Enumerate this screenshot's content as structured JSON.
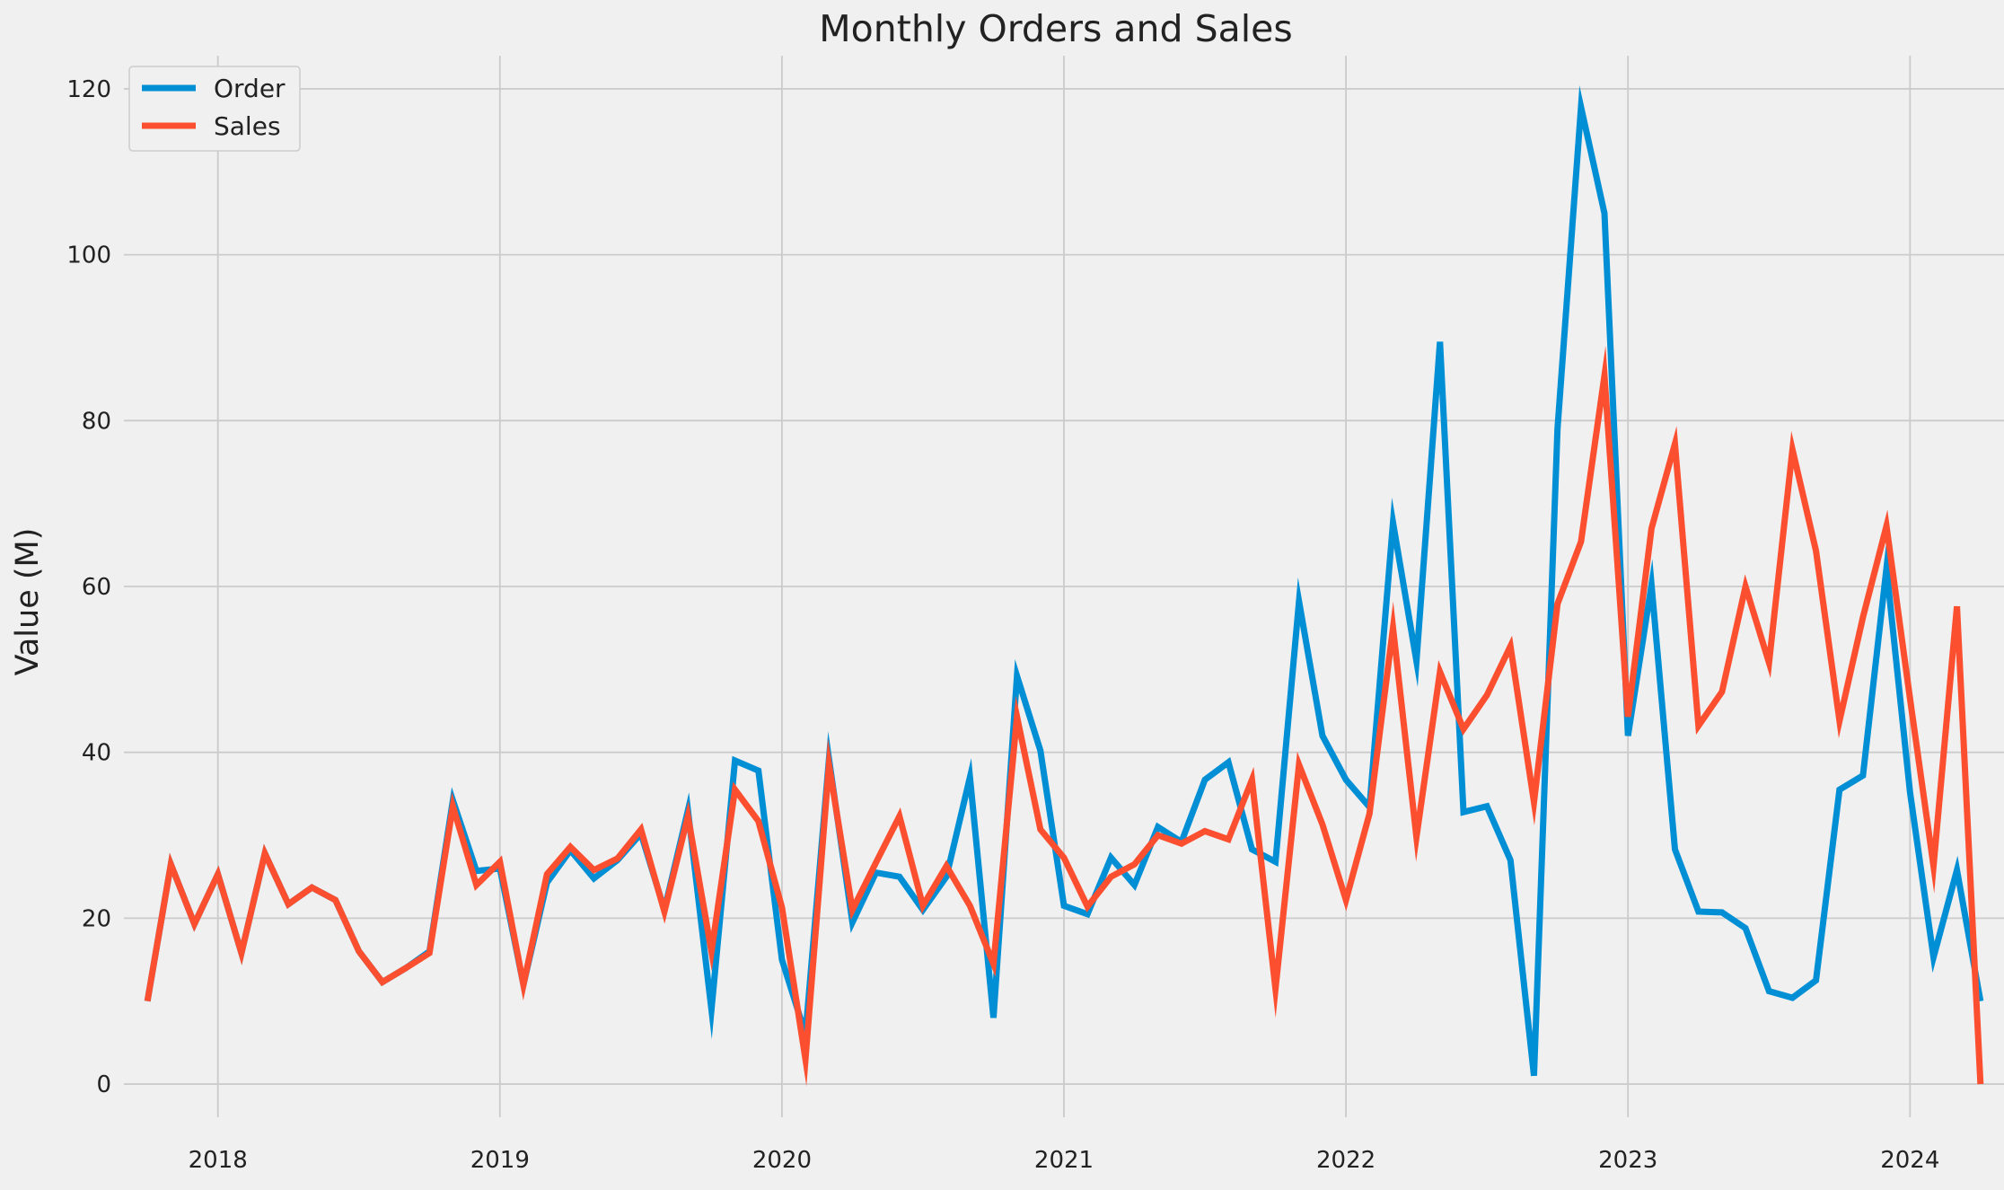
{
  "chart_data": {
    "type": "line",
    "title": "Monthly Orders and Sales",
    "xlabel": "",
    "ylabel": "Value (M)",
    "x_ticks": [
      "2018",
      "2019",
      "2020",
      "2021",
      "2022",
      "2023",
      "2024"
    ],
    "y_ticks": [
      "0",
      "20",
      "40",
      "60",
      "80",
      "100",
      "120"
    ],
    "xlim": [
      "2017-09",
      "2024-05"
    ],
    "ylim": [
      -4,
      124
    ],
    "grid": true,
    "legend_position": "top-left",
    "x": [
      "2017-10",
      "2017-11",
      "2017-12",
      "2018-01",
      "2018-02",
      "2018-03",
      "2018-04",
      "2018-05",
      "2018-06",
      "2018-07",
      "2018-08",
      "2018-09",
      "2018-10",
      "2018-11",
      "2018-12",
      "2019-01",
      "2019-02",
      "2019-03",
      "2019-04",
      "2019-05",
      "2019-06",
      "2019-07",
      "2019-08",
      "2019-09",
      "2019-10",
      "2019-11",
      "2019-12",
      "2020-01",
      "2020-02",
      "2020-03",
      "2020-04",
      "2020-05",
      "2020-06",
      "2020-07",
      "2020-08",
      "2020-09",
      "2020-10",
      "2020-11",
      "2020-12",
      "2021-01",
      "2021-02",
      "2021-03",
      "2021-04",
      "2021-05",
      "2021-06",
      "2021-07",
      "2021-08",
      "2021-09",
      "2021-10",
      "2021-11",
      "2021-12",
      "2022-01",
      "2022-02",
      "2022-03",
      "2022-04",
      "2022-05",
      "2022-06",
      "2022-07",
      "2022-08",
      "2022-09",
      "2022-10",
      "2022-11",
      "2022-12",
      "2023-01",
      "2023-02",
      "2023-03",
      "2023-04",
      "2023-05",
      "2023-06",
      "2023-07",
      "2023-08",
      "2023-09",
      "2023-10",
      "2023-11",
      "2023-12",
      "2024-01",
      "2024-02",
      "2024-03",
      "2024-04"
    ],
    "series": [
      {
        "name": "Order",
        "color": "#008fd5",
        "values": [
          10,
          26.5,
          19.3,
          25.3,
          15.8,
          27.8,
          21.7,
          23.7,
          22.2,
          16,
          12.3,
          14,
          16,
          34.2,
          25.7,
          26,
          12,
          24.3,
          28.2,
          24.8,
          27,
          30.2,
          21,
          33,
          9,
          39,
          37.8,
          15,
          6,
          39.2,
          19.5,
          25.5,
          25,
          21,
          25,
          37,
          8,
          49.2,
          40.2,
          21.5,
          20.5,
          27.3,
          24,
          31,
          29.2,
          36.7,
          38.8,
          28.3,
          26.8,
          58.2,
          42,
          36.7,
          33.4,
          67.7,
          51,
          89.5,
          32.8,
          33.5,
          27,
          1,
          79,
          117.8,
          105,
          42,
          60.2,
          28.3,
          20.8,
          20.7,
          18.8,
          11.2,
          10.4,
          12.5,
          35.5,
          37.2,
          62.2,
          35.2,
          15.3,
          25.8,
          10
        ]
      },
      {
        "name": "Sales",
        "color": "#fc4f30",
        "values": [
          10,
          26.5,
          19.3,
          25.3,
          15.8,
          27.8,
          21.7,
          23.7,
          22.2,
          16,
          12.3,
          14,
          15.8,
          33.5,
          24,
          26.8,
          12,
          25.3,
          28.6,
          25.8,
          27.2,
          30.7,
          20.8,
          32.3,
          16,
          35.5,
          31.7,
          21.3,
          3,
          38.5,
          21,
          26.7,
          32.3,
          21.5,
          26.3,
          21.5,
          14.5,
          44.3,
          30.7,
          27.3,
          21.4,
          25,
          26.5,
          30,
          29,
          30.5,
          29.5,
          36.7,
          11.5,
          38.5,
          31.3,
          22.2,
          32.6,
          55,
          29.8,
          49.7,
          42.8,
          46.9,
          52.8,
          34,
          57.9,
          65.4,
          85.4,
          44.3,
          67,
          77.2,
          43.2,
          47.3,
          60,
          50.8,
          76.5,
          64.3,
          43.8,
          56.3,
          67.3,
          46.5,
          26.3,
          57.6,
          0
        ]
      }
    ]
  }
}
